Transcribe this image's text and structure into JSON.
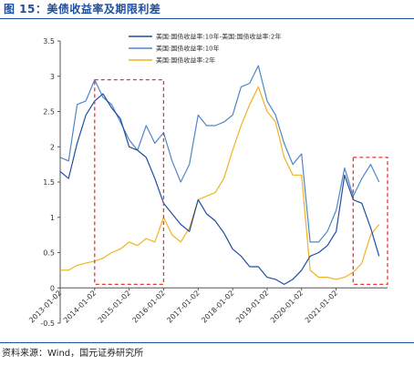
{
  "header": {
    "title": "图 15：美债收益率及期限利差"
  },
  "footer": {
    "source": "资料来源：Wind，国元证券研究所"
  },
  "chart_data": {
    "type": "line",
    "title": "图 15：美债收益率及期限利差",
    "xlabel": "",
    "ylabel": "",
    "ylim": [
      -0.5,
      3.5
    ],
    "yticks": [
      "3.5",
      "3",
      "2.5",
      "2",
      "1.5",
      "1",
      "0.5",
      "0",
      "-0.5"
    ],
    "xlim": [
      "2013-01-02",
      "2022-06-30"
    ],
    "xticks": [
      "2013-01-02",
      "2014-01-02",
      "2015-01-02",
      "2016-01-02",
      "2017-01-02",
      "2018-01-02",
      "2019-01-02",
      "2020-01-02",
      "2021-01-02"
    ],
    "grid": false,
    "legend_position": "top-right",
    "series": [
      {
        "name": "美国:国债收益率:10年-美国:国债收益率:2年",
        "color": "#1f4e9e",
        "x": [
          "2013-01-02",
          "2013-04-01",
          "2013-07-01",
          "2013-10-01",
          "2014-01-02",
          "2014-04-01",
          "2014-07-01",
          "2014-10-01",
          "2015-01-02",
          "2015-04-01",
          "2015-07-01",
          "2015-10-01",
          "2016-01-02",
          "2016-04-01",
          "2016-07-01",
          "2016-10-01",
          "2017-01-02",
          "2017-04-01",
          "2017-07-01",
          "2017-10-01",
          "2018-01-02",
          "2018-04-01",
          "2018-07-01",
          "2018-10-01",
          "2019-01-02",
          "2019-04-01",
          "2019-07-01",
          "2019-10-01",
          "2020-01-02",
          "2020-04-01",
          "2020-07-01",
          "2020-10-01",
          "2021-01-02",
          "2021-04-01",
          "2021-07-01",
          "2021-10-01",
          "2022-01-02",
          "2022-04-01"
        ],
        "values": [
          1.65,
          1.55,
          2.05,
          2.45,
          2.65,
          2.75,
          2.55,
          2.4,
          2.0,
          1.95,
          1.85,
          1.55,
          1.2,
          1.05,
          0.9,
          0.8,
          1.25,
          1.05,
          0.95,
          0.78,
          0.55,
          0.45,
          0.3,
          0.3,
          0.15,
          0.12,
          0.05,
          0.12,
          0.25,
          0.45,
          0.5,
          0.6,
          0.8,
          1.6,
          1.25,
          1.2,
          0.85,
          0.45
        ]
      },
      {
        "name": "美国:国债收益率:10年",
        "color": "#4f86c6",
        "x": [
          "2013-01-02",
          "2013-04-01",
          "2013-07-01",
          "2013-10-01",
          "2014-01-02",
          "2014-04-01",
          "2014-07-01",
          "2014-10-01",
          "2015-01-02",
          "2015-04-01",
          "2015-07-01",
          "2015-10-01",
          "2016-01-02",
          "2016-04-01",
          "2016-07-01",
          "2016-10-01",
          "2017-01-02",
          "2017-04-01",
          "2017-07-01",
          "2017-10-01",
          "2018-01-02",
          "2018-04-01",
          "2018-07-01",
          "2018-10-01",
          "2019-01-02",
          "2019-04-01",
          "2019-07-01",
          "2019-10-01",
          "2020-01-02",
          "2020-04-01",
          "2020-07-01",
          "2020-10-01",
          "2021-01-02",
          "2021-04-01",
          "2021-07-01",
          "2021-10-01",
          "2022-01-02",
          "2022-04-01"
        ],
        "values": [
          1.85,
          1.8,
          2.6,
          2.65,
          2.95,
          2.7,
          2.6,
          2.35,
          2.1,
          1.95,
          2.3,
          2.05,
          2.2,
          1.8,
          1.5,
          1.75,
          2.45,
          2.3,
          2.3,
          2.35,
          2.45,
          2.85,
          2.9,
          3.15,
          2.65,
          2.45,
          2.05,
          1.75,
          1.9,
          0.65,
          0.65,
          0.8,
          1.1,
          1.7,
          1.3,
          1.55,
          1.75,
          1.5
        ]
      },
      {
        "name": "美国:国债收益率:2年",
        "color": "#f0b323",
        "x": [
          "2013-01-02",
          "2013-04-01",
          "2013-07-01",
          "2013-10-01",
          "2014-01-02",
          "2014-04-01",
          "2014-07-01",
          "2014-10-01",
          "2015-01-02",
          "2015-04-01",
          "2015-07-01",
          "2015-10-01",
          "2016-01-02",
          "2016-04-01",
          "2016-07-01",
          "2016-10-01",
          "2017-01-02",
          "2017-04-01",
          "2017-07-01",
          "2017-10-01",
          "2018-01-02",
          "2018-04-01",
          "2018-07-01",
          "2018-10-01",
          "2019-01-02",
          "2019-04-01",
          "2019-07-01",
          "2019-10-01",
          "2020-01-02",
          "2020-04-01",
          "2020-07-01",
          "2020-10-01",
          "2021-01-02",
          "2021-04-01",
          "2021-07-01",
          "2021-10-01",
          "2022-01-02",
          "2022-04-01"
        ],
        "values": [
          0.25,
          0.25,
          0.32,
          0.35,
          0.38,
          0.42,
          0.5,
          0.55,
          0.65,
          0.6,
          0.7,
          0.65,
          1.0,
          0.75,
          0.65,
          0.85,
          1.25,
          1.3,
          1.35,
          1.55,
          1.95,
          2.3,
          2.6,
          2.85,
          2.5,
          2.35,
          1.85,
          1.6,
          1.6,
          0.25,
          0.15,
          0.15,
          0.12,
          0.15,
          0.22,
          0.35,
          0.75,
          0.9
        ]
      }
    ],
    "highlight_boxes": [
      {
        "x_range": [
          "2014-01-02",
          "2016-01-02"
        ],
        "y_range": [
          0.05,
          2.95
        ],
        "color": "#e53935",
        "style": "dashed"
      },
      {
        "x_range": [
          "2021-07-01",
          "2022-06-30"
        ],
        "y_range": [
          0.05,
          1.85
        ],
        "color": "#e53935",
        "style": "dashed"
      }
    ]
  }
}
